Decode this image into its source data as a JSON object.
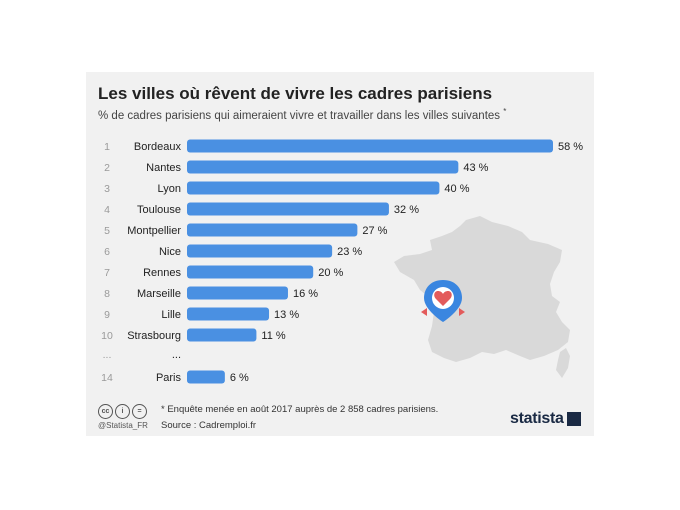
{
  "header": {
    "title": "Les villes où rêvent de vivre les cadres parisiens",
    "subtitle": "% de cadres parisiens qui aimeraient vivre et travailler dans les villes suivantes",
    "subtitle_mark": "*"
  },
  "chart_data": {
    "type": "bar",
    "orientation": "horizontal",
    "title": "Les villes où rêvent de vivre les cadres parisiens",
    "subtitle": "% de cadres parisiens qui aimeraient vivre et travailler dans les villes suivantes *",
    "unit": "%",
    "xlim": [
      0,
      58
    ],
    "ellipsis_row": {
      "rank": "...",
      "city": "..."
    },
    "rows": [
      {
        "rank": "1",
        "city": "Bordeaux",
        "value": 58,
        "label": "58 %"
      },
      {
        "rank": "2",
        "city": "Nantes",
        "value": 43,
        "label": "43 %"
      },
      {
        "rank": "3",
        "city": "Lyon",
        "value": 40,
        "label": "40 %"
      },
      {
        "rank": "4",
        "city": "Toulouse",
        "value": 32,
        "label": "32 %"
      },
      {
        "rank": "5",
        "city": "Montpellier",
        "value": 27,
        "label": "27 %"
      },
      {
        "rank": "6",
        "city": "Nice",
        "value": 23,
        "label": "23 %"
      },
      {
        "rank": "7",
        "city": "Rennes",
        "value": 20,
        "label": "20 %"
      },
      {
        "rank": "8",
        "city": "Marseille",
        "value": 16,
        "label": "16 %"
      },
      {
        "rank": "9",
        "city": "Lille",
        "value": 13,
        "label": "13 %"
      },
      {
        "rank": "10",
        "city": "Strasbourg",
        "value": 11,
        "label": "11 %"
      },
      {
        "rank": "14",
        "city": "Paris",
        "value": 6,
        "label": "6 %"
      }
    ]
  },
  "footer": {
    "note": "* Enquête menée en août 2017 auprès de 2 858 cadres parisiens.",
    "source": "Source : Cadremploi.fr",
    "handle": "@Statista_FR",
    "license_icons": [
      "cc",
      "i",
      "="
    ],
    "brand": "statista"
  },
  "colors": {
    "bar": "#4a90e2",
    "map": "#d9d9d9",
    "pin": "#3a86e0",
    "heart": "#e35b5b",
    "background": "#f1f1f1"
  }
}
